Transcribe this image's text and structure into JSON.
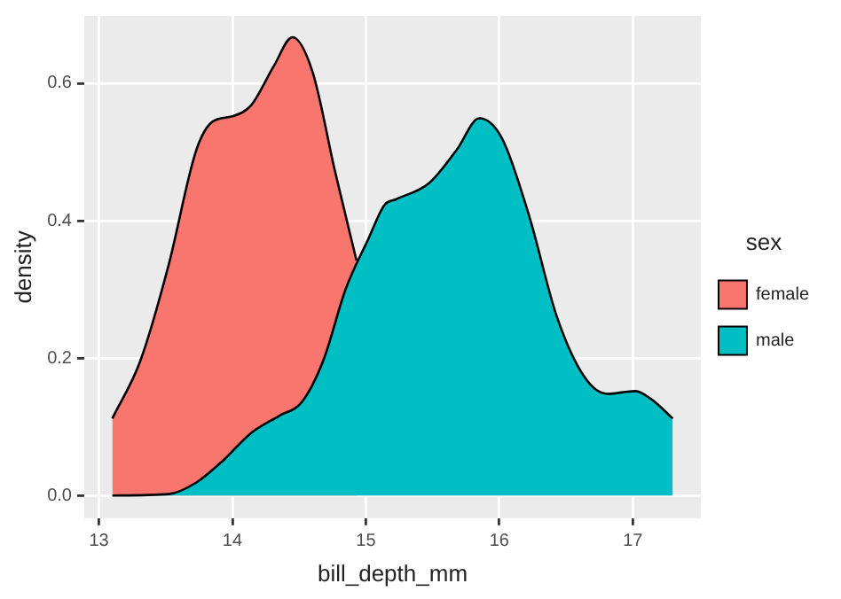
{
  "chart_data": {
    "type": "area",
    "xlabel": "bill_depth_mm",
    "ylabel": "density",
    "legend_title": "sex",
    "legend": "right",
    "grid": true,
    "xlim": [
      12.89,
      17.51
    ],
    "ylim": [
      -0.033,
      0.698
    ],
    "xticks": [
      13,
      14,
      15,
      16,
      17
    ],
    "yticks": [
      {
        "value": 0,
        "label": "0.0"
      },
      0.2,
      0.4,
      0.6
    ],
    "series": [
      {
        "name": "female",
        "color": "#f8766d",
        "x": [
          13.1,
          13.31,
          13.52,
          13.73,
          13.85,
          14.0,
          14.14,
          14.31,
          14.45,
          14.6,
          14.77,
          14.93
        ],
        "values": [
          0.112,
          0.196,
          0.334,
          0.503,
          0.544,
          0.552,
          0.568,
          0.625,
          0.667,
          0.617,
          0.471,
          0.342
        ]
      },
      {
        "name": "male",
        "color": "#00bfc4",
        "x": [
          13.1,
          13.52,
          13.73,
          13.93,
          14.14,
          14.35,
          14.52,
          14.68,
          14.85,
          15.02,
          15.14,
          15.225,
          15.475,
          15.68,
          15.85,
          16.02,
          16.225,
          16.43,
          16.64,
          16.81,
          17.02,
          17.14,
          17.3
        ],
        "values": [
          0,
          0.002,
          0.019,
          0.051,
          0.091,
          0.116,
          0.136,
          0.196,
          0.301,
          0.374,
          0.423,
          0.431,
          0.455,
          0.503,
          0.549,
          0.52,
          0.406,
          0.261,
          0.172,
          0.148,
          0.152,
          0.14,
          0.112
        ]
      }
    ]
  }
}
